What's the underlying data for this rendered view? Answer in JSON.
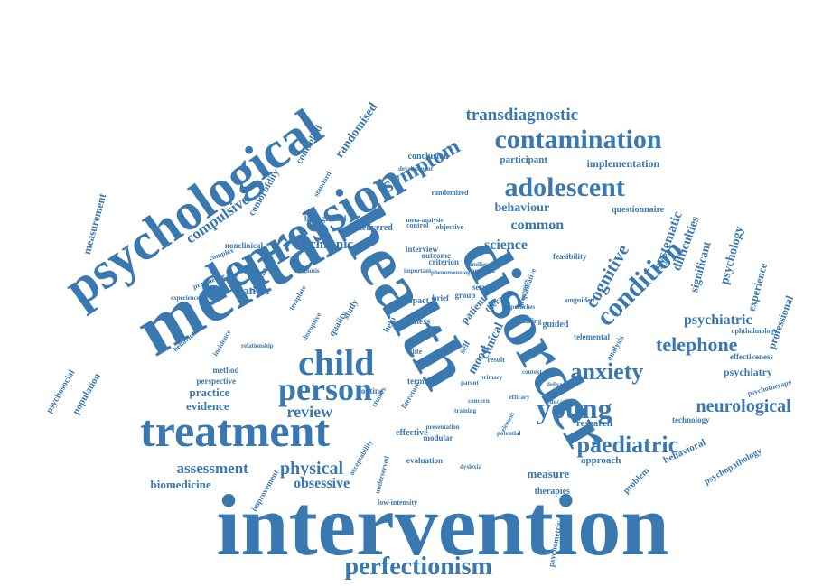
{
  "color": "#3a78b0",
  "words": [
    "intervention",
    "health",
    "mental",
    "disorder",
    "psychological",
    "depression",
    "treatment",
    "perfectionism",
    "child",
    "person",
    "young",
    "anxiety",
    "contamination",
    "adolescent",
    "paediatric",
    "condition",
    "transdiagnostic",
    "symptom",
    "neurological",
    "telephone",
    "cognitive",
    "physical",
    "assessment",
    "compulsive",
    "review",
    "science",
    "chronic",
    "obsessive",
    "common",
    "behaviour",
    "psychiatric",
    "clinical",
    "systematic",
    "difficulties",
    "psychology",
    "measure",
    "psychiatry",
    "professional",
    "randomised",
    "measurement",
    "biomedicine",
    "evidence",
    "practice",
    "cancer",
    "population",
    "psychosocial",
    "improvement",
    "approach",
    "problem",
    "behavioral",
    "psychopathology",
    "therapies",
    "research",
    "technology",
    "significant",
    "experience",
    "effectiveness",
    "ophthalmology",
    "psychotherapy",
    "implementation",
    "participant",
    "conclusion",
    "comorbidity",
    "controlled",
    "loneliness",
    "background",
    "delivered",
    "interview",
    "criterion",
    "feasibility",
    "service",
    "guided",
    "analysis",
    "method",
    "perspective",
    "term",
    "effective",
    "modular",
    "evaluation",
    "routine",
    "illness",
    "study",
    "quality",
    "outcome",
    "self",
    "mood",
    "therapy",
    "patient",
    "impact",
    "brief",
    "group",
    "result",
    "life",
    "help",
    "finding",
    "psychometric",
    "low-intensity",
    "questionnaire",
    "objective",
    "randomized",
    "development",
    "nonclinical",
    "complex",
    "disruptive",
    "template",
    "qualitative",
    "processes",
    "unguided",
    "telemental",
    "education",
    "delivery",
    "context",
    "prevalence",
    "incidence",
    "standard",
    "experienced",
    "relationship",
    "behavioural",
    "approaches",
    "studies",
    "literature",
    "control",
    "training",
    "primary",
    "anorexia",
    "diagnosis",
    "parent",
    "concern",
    "presentation",
    "potential",
    "families",
    "important",
    "phenomenological",
    "meta-analysis",
    "acceptability",
    "underserved",
    "dyslexia",
    "element",
    "efficacy"
  ]
}
